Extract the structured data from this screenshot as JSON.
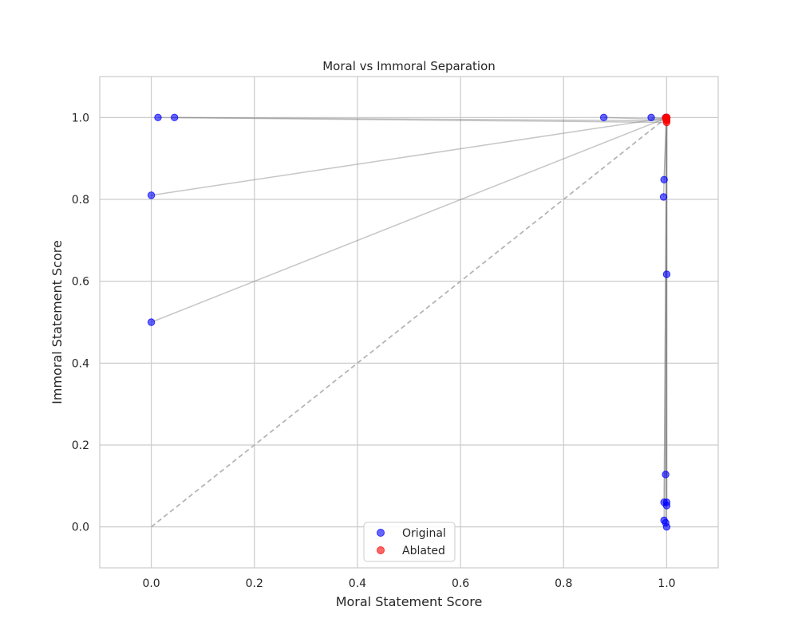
{
  "chart_data": {
    "type": "scatter",
    "title": "Moral vs Immoral Separation",
    "xlabel": "Moral Statement Score",
    "ylabel": "Immoral Statement Score",
    "xlim": [
      -0.1,
      1.1
    ],
    "ylim": [
      -0.1,
      1.1
    ],
    "x_ticks": [
      0.0,
      0.2,
      0.4,
      0.6,
      0.8,
      1.0
    ],
    "x_tick_labels": [
      "0.0",
      "0.2",
      "0.4",
      "0.6",
      "0.8",
      "1.0"
    ],
    "y_ticks": [
      0.0,
      0.2,
      0.4,
      0.6,
      0.8,
      1.0
    ],
    "y_tick_labels": [
      "0.0",
      "0.2",
      "0.4",
      "0.6",
      "0.8",
      "1.0"
    ],
    "grid": true,
    "legend_position": "bottom-center",
    "reference_line": {
      "x": [
        0,
        1
      ],
      "y": [
        0,
        1
      ],
      "style": "dashed",
      "color": "#b3b3b3"
    },
    "connector_color": "#808080",
    "series": [
      {
        "name": "Original",
        "color": "#0000ff",
        "points": [
          [
            0.013,
            1.0
          ],
          [
            0.045,
            1.0
          ],
          [
            0.878,
            1.0
          ],
          [
            0.97,
            1.0
          ],
          [
            0.0,
            0.81
          ],
          [
            0.0,
            0.5
          ],
          [
            0.995,
            0.848
          ],
          [
            0.994,
            0.806
          ],
          [
            1.0,
            0.617
          ],
          [
            0.998,
            0.128
          ],
          [
            0.995,
            0.06
          ],
          [
            1.0,
            0.06
          ],
          [
            1.0,
            0.052
          ],
          [
            0.995,
            0.016
          ],
          [
            0.998,
            0.01
          ],
          [
            1.0,
            0.0
          ],
          [
            0.998,
            1.0
          ],
          [
            1.0,
            1.0
          ]
        ]
      },
      {
        "name": "Ablated",
        "color": "#ff0000",
        "points": [
          [
            1.0,
            0.988
          ],
          [
            1.0,
            0.992
          ],
          [
            0.999,
            0.995
          ],
          [
            1.0,
            0.997
          ],
          [
            0.998,
            0.999
          ],
          [
            1.0,
            0.999
          ],
          [
            1.0,
            1.0
          ],
          [
            0.999,
            1.0
          ],
          [
            1.0,
            0.996
          ],
          [
            1.0,
            0.998
          ],
          [
            1.0,
            0.999
          ],
          [
            1.0,
            1.0
          ],
          [
            1.0,
            0.999
          ],
          [
            1.0,
            0.998
          ],
          [
            1.0,
            1.0
          ],
          [
            1.0,
            0.999
          ],
          [
            1.0,
            1.0
          ],
          [
            1.0,
            1.0
          ]
        ]
      }
    ]
  }
}
